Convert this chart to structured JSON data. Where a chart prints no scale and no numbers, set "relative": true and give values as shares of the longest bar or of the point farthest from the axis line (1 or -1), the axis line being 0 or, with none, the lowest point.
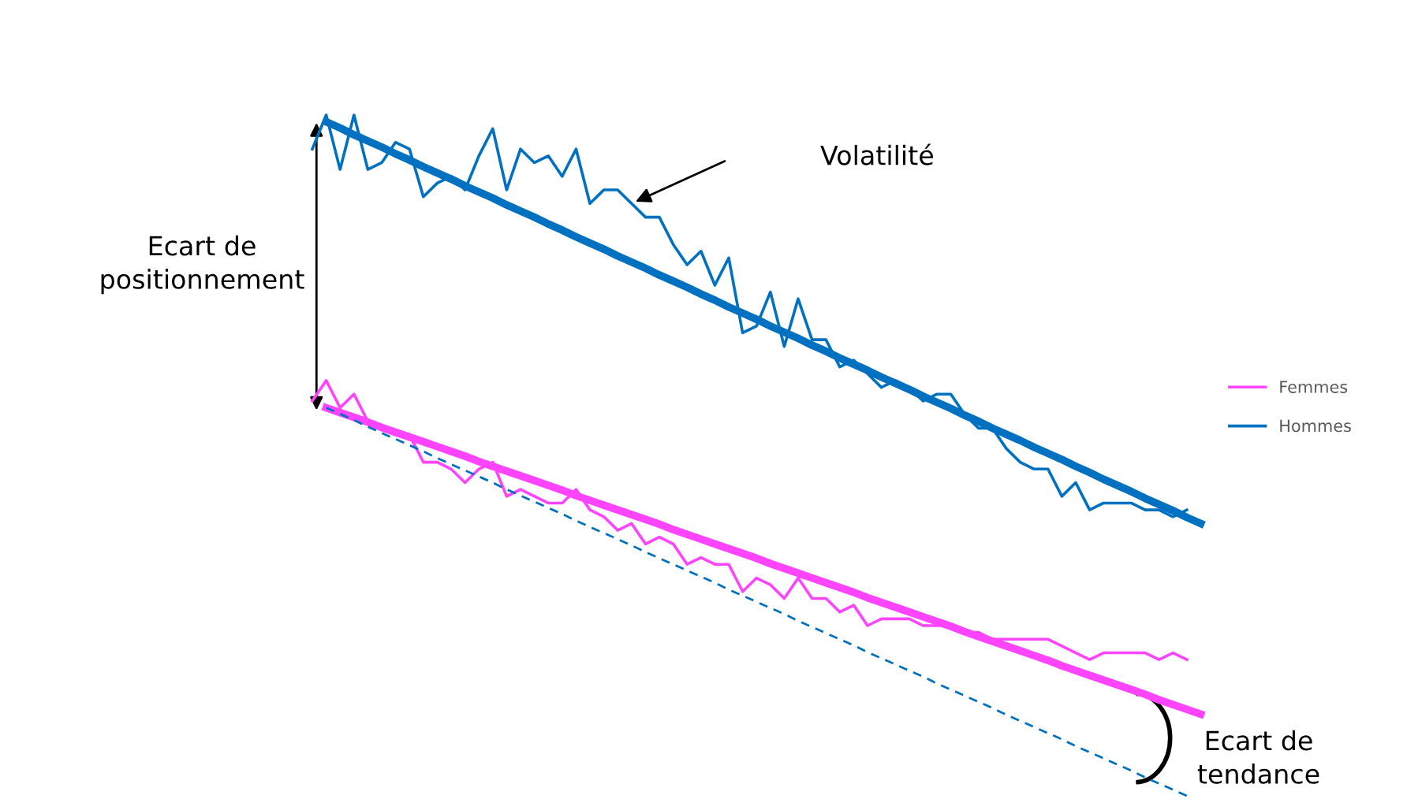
{
  "chart_data": {
    "type": "line",
    "relative": true,
    "legend": "right",
    "categories": [
      null,
      null,
      null,
      null,
      null,
      null,
      null,
      null,
      null,
      null,
      null,
      null,
      null,
      null,
      null,
      null,
      null,
      null,
      null,
      null,
      null,
      null,
      null,
      null,
      null,
      null,
      null,
      null,
      null,
      null,
      null,
      null,
      null,
      null,
      null,
      null,
      null,
      null,
      null,
      null,
      null,
      null,
      null,
      null,
      null,
      null,
      null,
      null,
      null,
      null,
      null,
      null,
      null,
      null,
      null,
      null,
      null,
      null,
      null,
      null,
      null,
      null,
      null,
      null,
      null
    ],
    "series": [
      {
        "name": "Femmes",
        "color": "#ff44ff",
        "values": [
          0.58,
          0.61,
          0.57,
          0.59,
          0.55,
          0.54,
          0.53,
          0.53,
          0.49,
          0.49,
          0.48,
          0.46,
          0.48,
          0.49,
          0.44,
          0.45,
          0.44,
          0.43,
          0.43,
          0.45,
          0.42,
          0.41,
          0.39,
          0.4,
          0.37,
          0.38,
          0.37,
          0.34,
          0.35,
          0.34,
          0.34,
          0.3,
          0.32,
          0.31,
          0.29,
          0.32,
          0.29,
          0.29,
          0.27,
          0.28,
          0.25,
          0.26,
          0.26,
          0.26,
          0.25,
          0.25,
          0.25,
          0.24,
          0.24,
          0.23,
          0.23,
          0.23,
          0.23,
          0.23,
          0.22,
          0.21,
          0.2,
          0.21,
          0.21,
          0.21,
          0.21,
          0.2,
          0.21,
          0.2,
          null
        ]
      },
      {
        "name": "Hommes",
        "color": "#0070c0",
        "values": [
          0.95,
          1.0,
          0.92,
          1.0,
          0.92,
          0.93,
          0.96,
          0.95,
          0.88,
          0.9,
          0.91,
          0.89,
          0.94,
          0.98,
          0.89,
          0.95,
          0.93,
          0.94,
          0.91,
          0.95,
          0.87,
          0.89,
          0.89,
          0.87,
          0.85,
          0.85,
          0.81,
          0.78,
          0.8,
          0.75,
          0.79,
          0.68,
          0.69,
          0.74,
          0.66,
          0.73,
          0.67,
          0.67,
          0.63,
          0.64,
          0.62,
          0.6,
          0.61,
          0.6,
          0.58,
          0.59,
          0.59,
          0.56,
          0.54,
          0.54,
          0.51,
          0.49,
          0.48,
          0.48,
          0.44,
          0.46,
          0.42,
          0.43,
          0.43,
          0.43,
          0.42,
          0.42,
          0.41,
          0.42,
          null
        ]
      },
      {
        "color": "#0070c0",
        "values": [
          null,
          0.99,
          0.981,
          0.971,
          0.962,
          0.953,
          0.943,
          0.934,
          0.924,
          0.915,
          0.906,
          0.896,
          0.887,
          0.878,
          0.868,
          0.859,
          0.85,
          0.84,
          0.831,
          0.821,
          0.812,
          0.803,
          0.793,
          0.784,
          0.775,
          0.765,
          0.756,
          0.747,
          0.737,
          0.728,
          0.718,
          0.709,
          0.7,
          0.69,
          0.681,
          0.672,
          0.662,
          0.653,
          0.643,
          0.634,
          0.625,
          0.615,
          0.606,
          0.597,
          0.587,
          0.578,
          0.569,
          0.559,
          0.55,
          0.54,
          0.531,
          0.522,
          0.512,
          0.503,
          0.494,
          0.484,
          0.475,
          0.465,
          0.456,
          0.447,
          0.437,
          0.428,
          0.419,
          0.409,
          0.4
        ]
      },
      {
        "color": "#ff44ff",
        "values": [
          null,
          0.57,
          0.563,
          0.556,
          0.549,
          0.541,
          0.534,
          0.527,
          0.52,
          0.513,
          0.506,
          0.499,
          0.491,
          0.484,
          0.477,
          0.47,
          0.463,
          0.456,
          0.449,
          0.441,
          0.434,
          0.427,
          0.42,
          0.413,
          0.406,
          0.399,
          0.391,
          0.384,
          0.377,
          0.37,
          0.363,
          0.356,
          0.349,
          0.341,
          0.334,
          0.327,
          0.32,
          0.313,
          0.306,
          0.299,
          0.291,
          0.284,
          0.277,
          0.27,
          0.263,
          0.256,
          0.249,
          0.241,
          0.234,
          0.227,
          0.22,
          0.213,
          0.206,
          0.199,
          0.191,
          0.184,
          0.177,
          0.17,
          0.163,
          0.156,
          0.149,
          0.141,
          0.134,
          0.127,
          0.12
        ]
      },
      {
        "color": "#0070c0",
        "line_style": "dashed",
        "values": [
          null,
          0.57,
          0.561,
          0.552,
          0.542,
          0.533,
          0.524,
          0.515,
          0.506,
          0.496,
          0.487,
          0.478,
          0.469,
          0.46,
          0.45,
          0.441,
          0.432,
          0.423,
          0.414,
          0.404,
          0.395,
          0.386,
          0.377,
          0.368,
          0.358,
          0.349,
          0.34,
          0.331,
          0.322,
          0.313,
          0.303,
          0.294,
          0.285,
          0.276,
          0.267,
          0.257,
          0.248,
          0.239,
          0.23,
          0.221,
          0.211,
          0.202,
          0.193,
          0.184,
          0.175,
          0.165,
          0.156,
          0.147,
          0.138,
          0.129,
          0.119,
          0.11,
          0.101,
          0.092,
          0.083,
          0.073,
          0.064,
          0.055,
          0.046,
          0.037,
          0.027,
          0.018,
          0.009,
          0.0,
          null
        ]
      }
    ],
    "annotations": [
      "Volatilité",
      "Ecart de\npositionnement",
      "Ecart de\ntendance"
    ]
  }
}
